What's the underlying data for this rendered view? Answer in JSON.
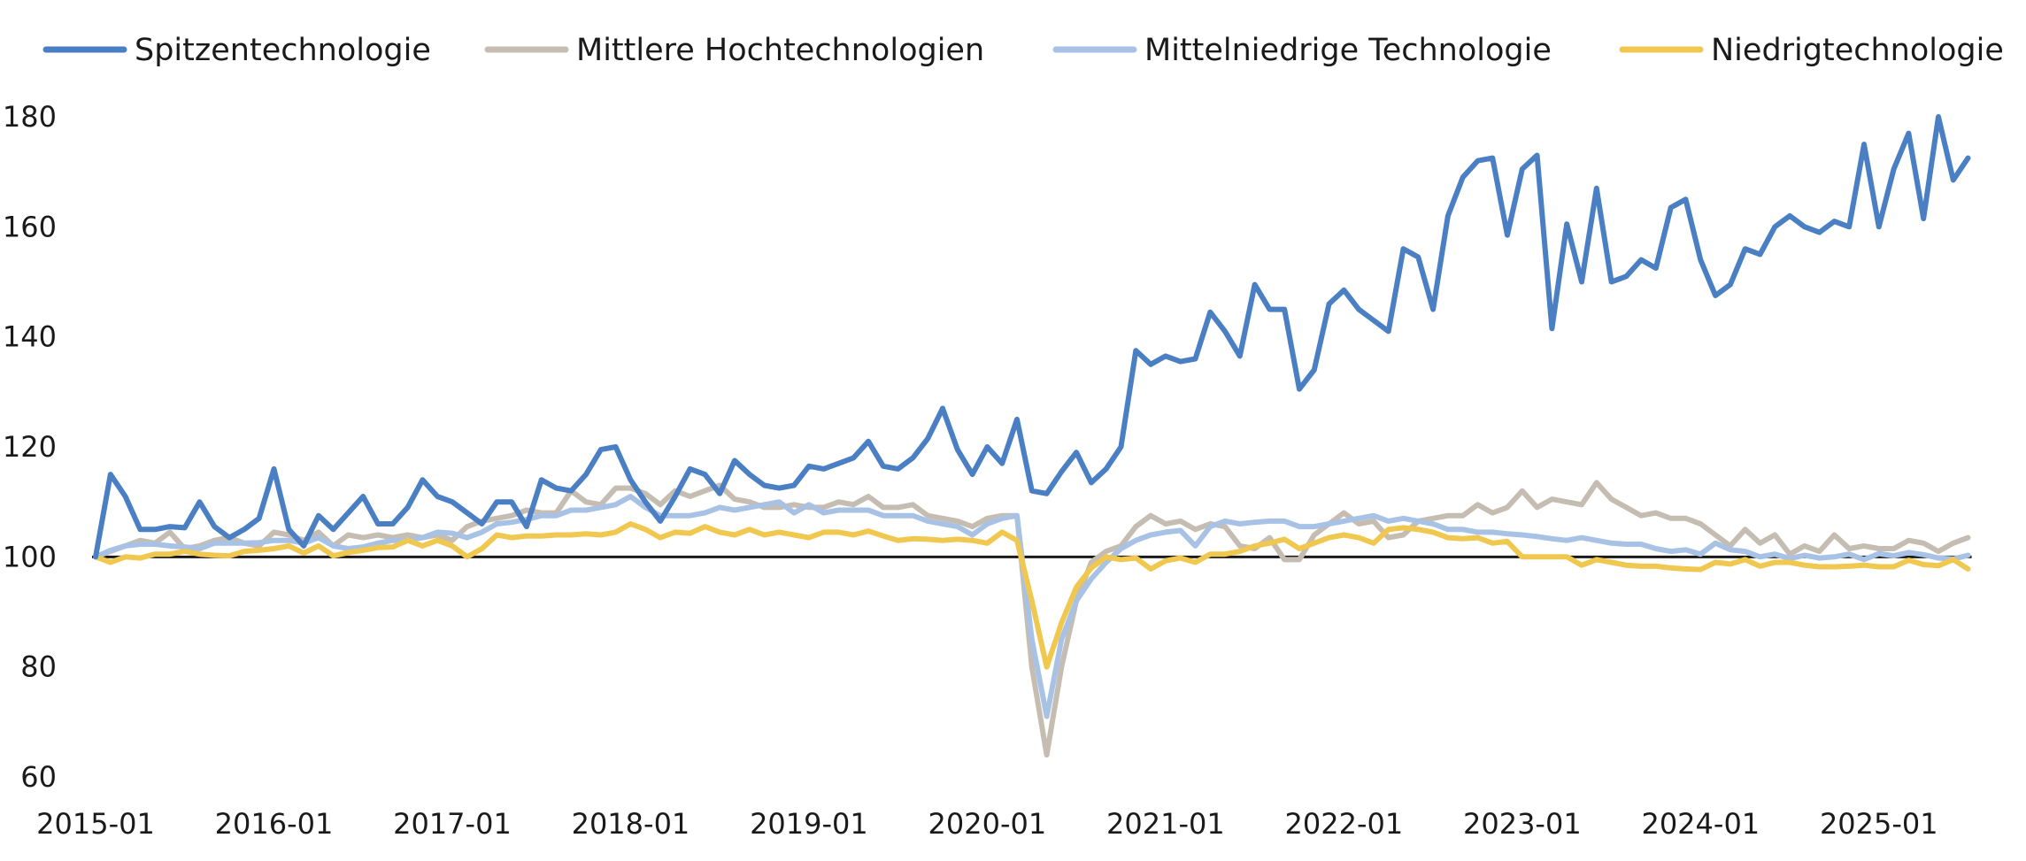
{
  "chart_data": {
    "type": "line",
    "title": "",
    "xlabel": "",
    "ylabel": "",
    "x_start": "2015-01",
    "x_end": "2025-07",
    "frequency": "monthly",
    "x_tick_labels": [
      "2015-01",
      "2016-01",
      "2017-01",
      "2018-01",
      "2019-01",
      "2020-01",
      "2021-01",
      "2022-01",
      "2023-01",
      "2024-01",
      "2025-01"
    ],
    "y_ticks": [
      60,
      80,
      100,
      120,
      140,
      160,
      180
    ],
    "ylim": [
      60,
      180
    ],
    "reference_line": 100,
    "grid": false,
    "legend_position": "top",
    "series": [
      {
        "name": "Spitzentechnologie",
        "color": "#4a7fc4",
        "values": [
          100,
          115,
          111,
          105,
          105,
          105.5,
          105.3,
          110,
          105.5,
          103.5,
          105,
          107,
          116,
          105,
          102,
          107.5,
          105,
          108,
          111,
          106,
          106,
          109,
          114,
          111,
          110,
          108,
          106,
          110,
          110,
          105.5,
          114,
          112.5,
          112,
          115,
          119.5,
          120,
          114,
          110,
          106.5,
          111,
          116,
          115,
          111.5,
          117.5,
          115,
          113,
          112.5,
          113,
          116.5,
          116,
          117,
          118,
          121,
          116.5,
          116,
          118,
          121.5,
          127,
          119.5,
          115,
          120,
          117,
          125,
          112,
          111.5,
          115.5,
          119,
          113.5,
          116,
          120,
          137.5,
          135,
          136.5,
          135.5,
          136,
          144.5,
          141,
          136.5,
          149.5,
          145,
          145,
          130.5,
          134,
          146,
          148.5,
          145,
          143,
          141,
          156,
          154.5,
          145,
          162,
          169,
          172,
          172.5,
          158.5,
          170.5,
          173,
          141.5,
          160.5,
          150,
          167,
          150,
          151,
          154,
          152.5,
          163.5,
          165,
          154,
          147.5,
          149.5,
          156,
          155,
          160,
          162,
          160,
          159,
          161,
          160,
          175,
          160,
          170.5,
          177,
          161.5,
          180,
          168.5,
          172.5
        ]
      },
      {
        "name": "Mittlere Hochtechnologien",
        "color": "#c5bdb1",
        "values": [
          100,
          101,
          102,
          103,
          102.5,
          104.5,
          101.5,
          102,
          103,
          103.5,
          102.5,
          102,
          104.5,
          104,
          103,
          104.5,
          102,
          104,
          103.5,
          104,
          103.5,
          104,
          103.5,
          104,
          103,
          105.5,
          106.5,
          107,
          107.5,
          108.5,
          108,
          108,
          112,
          110,
          109.5,
          112.5,
          112.5,
          111.5,
          109.5,
          112,
          111,
          112,
          113,
          110.5,
          110,
          109,
          109,
          109.5,
          109,
          109,
          110,
          109.5,
          111,
          109,
          109,
          109.5,
          107.5,
          107,
          106.5,
          105.5,
          107,
          107.5,
          107.5,
          80,
          64,
          80,
          92,
          99,
          101,
          102,
          105.5,
          107.5,
          106,
          106.5,
          105,
          106,
          105.5,
          102,
          101.5,
          103.5,
          99.5,
          99.5,
          104,
          106,
          108,
          106,
          106.5,
          103.5,
          104,
          106.5,
          107,
          107.5,
          107.5,
          109.5,
          108,
          109,
          112,
          109,
          110.5,
          110,
          109.5,
          113.5,
          110.5,
          109,
          107.5,
          108,
          107,
          107,
          106,
          104,
          102,
          105,
          102.5,
          104,
          100.5,
          102,
          101,
          104,
          101.5,
          102,
          101.5,
          101.5,
          103,
          102.5,
          101,
          102.5,
          103.5
        ]
      },
      {
        "name": "Mittelniedrige Technologie",
        "color": "#a8c2e6",
        "values": [
          100,
          101.2,
          102,
          102.3,
          102.3,
          102,
          101.8,
          101.5,
          102.5,
          102.5,
          102.5,
          102.6,
          103,
          103,
          102.5,
          103.5,
          102,
          101.5,
          101.8,
          102.5,
          103,
          103,
          103.5,
          104.5,
          104.3,
          103.5,
          104.5,
          106,
          106.3,
          106.8,
          107.5,
          107.5,
          108.5,
          108.5,
          109,
          109.5,
          111,
          109,
          107.5,
          107.5,
          107.5,
          108,
          109,
          108.5,
          109,
          109.5,
          110,
          108,
          109.5,
          108,
          108.5,
          108.5,
          108.5,
          107.5,
          107.5,
          107.5,
          106.5,
          106,
          105.5,
          104,
          106,
          107,
          107.5,
          85,
          71,
          85,
          92,
          96,
          99,
          101.5,
          103,
          104,
          104.5,
          104.8,
          102,
          105.5,
          106.5,
          106,
          106.3,
          106.5,
          106.5,
          105.5,
          105.5,
          106,
          106.5,
          107,
          107.5,
          106.5,
          107,
          106.5,
          106,
          105,
          105,
          104.5,
          104.5,
          104.2,
          104,
          103.7,
          103.3,
          103,
          103.5,
          103,
          102.5,
          102.3,
          102.3,
          101.5,
          101,
          101.3,
          100.5,
          102.5,
          101.3,
          101,
          100,
          100.5,
          99.7,
          100.3,
          99.8,
          100,
          100.5,
          99.5,
          100.6,
          100.2,
          100.8,
          100.4,
          99.8,
          99.6,
          100.3
        ]
      },
      {
        "name": "Niedrigtechnologie",
        "color": "#f0c850",
        "values": [
          100,
          99,
          100,
          99.8,
          100.5,
          100.5,
          101,
          100.5,
          100.3,
          100.2,
          101,
          101.2,
          101.5,
          102,
          100.7,
          102,
          100.2,
          100.8,
          101.2,
          101.7,
          101.8,
          103,
          102,
          103,
          102,
          100,
          101.5,
          104,
          103.5,
          103.8,
          103.8,
          104,
          104,
          104.2,
          104,
          104.5,
          106,
          105,
          103.5,
          104.5,
          104.3,
          105.5,
          104.5,
          104,
          105,
          104,
          104.5,
          104,
          103.5,
          104.5,
          104.5,
          104,
          104.7,
          103.8,
          103,
          103.3,
          103.2,
          103,
          103.2,
          103,
          102.5,
          104.5,
          103,
          92,
          80,
          88,
          94.5,
          98,
          100,
          99.5,
          99.8,
          97.8,
          99.3,
          99.8,
          99,
          100.5,
          100.5,
          101,
          102,
          102.5,
          103.2,
          101.5,
          102.5,
          103.5,
          104,
          103.5,
          102.5,
          105,
          105.3,
          105,
          104.5,
          103.5,
          103.3,
          103.5,
          102.5,
          102.8,
          100,
          100,
          100,
          100,
          98.5,
          99.5,
          99,
          98.5,
          98.3,
          98.3,
          98,
          97.8,
          97.7,
          99,
          98.7,
          99.5,
          98.3,
          99,
          99,
          98.5,
          98.2,
          98.2,
          98.3,
          98.5,
          98.2,
          98.2,
          99.4,
          98.6,
          98.4,
          99.5,
          97.8
        ]
      }
    ]
  }
}
